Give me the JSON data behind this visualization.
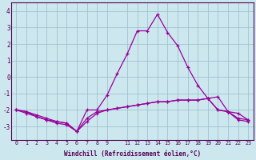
{
  "x": [
    0,
    1,
    2,
    3,
    4,
    5,
    6,
    7,
    8,
    9,
    10,
    11,
    12,
    13,
    14,
    15,
    16,
    17,
    18,
    19,
    20,
    21,
    22,
    23
  ],
  "line1": [
    -2.0,
    -2.2,
    -2.4,
    -2.6,
    -2.7,
    -2.8,
    -3.3,
    -2.0,
    -2.0,
    -1.1,
    0.2,
    1.4,
    2.8,
    2.8,
    3.8,
    2.7,
    1.9,
    0.6,
    -0.5,
    -1.3,
    -1.2,
    -2.1,
    -2.2,
    -2.6
  ],
  "line2": [
    -2.0,
    -2.1,
    -2.3,
    -2.5,
    -2.7,
    -2.8,
    -3.3,
    -2.5,
    -2.1,
    -2.0,
    -1.9,
    -1.8,
    -1.7,
    -1.6,
    -1.5,
    -1.5,
    -1.4,
    -1.4,
    -1.4,
    -1.3,
    -2.0,
    -2.1,
    -2.5,
    -2.6
  ],
  "line3": [
    -2.0,
    -2.1,
    -2.4,
    -2.6,
    -2.8,
    -2.9,
    -3.3,
    -2.7,
    -2.2,
    -2.0,
    -1.9,
    -1.8,
    -1.7,
    -1.6,
    -1.5,
    -1.5,
    -1.4,
    -1.4,
    -1.4,
    -1.3,
    -2.0,
    -2.1,
    -2.6,
    -2.7
  ],
  "bg_color": "#cce8ee",
  "line_color": "#990099",
  "grid_color": "#99bbcc",
  "axis_label_color": "#550055",
  "border_color": "#550055",
  "xlabel": "Windchill (Refroidissement éolien,°C)",
  "ylim": [
    -3.8,
    4.5
  ],
  "xlim": [
    -0.5,
    23.5
  ],
  "yticks": [
    -3,
    -2,
    -1,
    0,
    1,
    2,
    3,
    4
  ],
  "xticks": [
    0,
    1,
    2,
    3,
    4,
    5,
    6,
    7,
    8,
    9,
    11,
    12,
    13,
    14,
    15,
    16,
    17,
    18,
    19,
    20,
    21,
    22,
    23
  ],
  "xtick_labels": [
    "0",
    "1",
    "2",
    "3",
    "4",
    "5",
    "6",
    "7",
    "8",
    "9",
    "11",
    "12",
    "13",
    "14",
    "15",
    "16",
    "17",
    "18",
    "19",
    "20",
    "21",
    "22",
    "23"
  ]
}
